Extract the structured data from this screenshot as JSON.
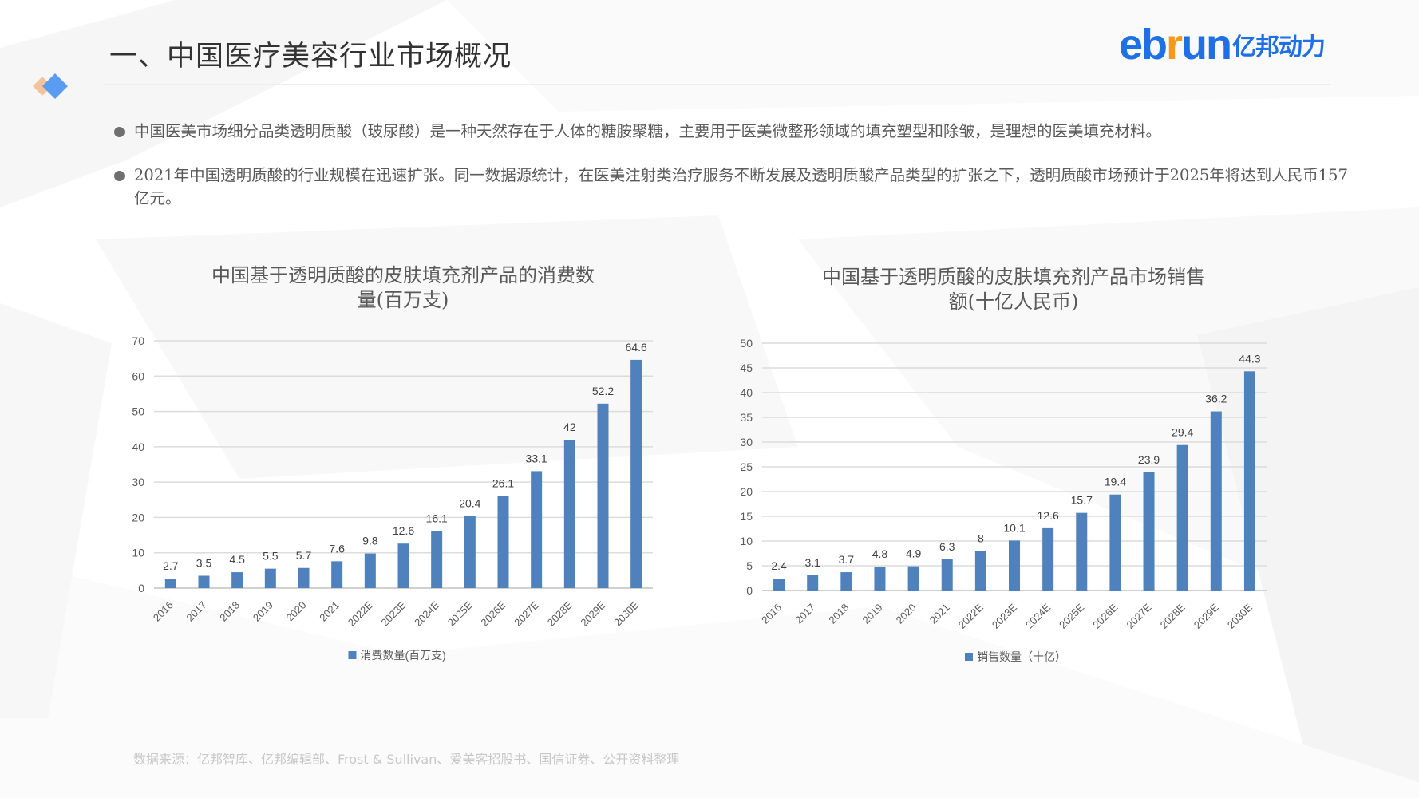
{
  "header": {
    "title": "一、中国医疗美容行业市场概况",
    "logo_latin_1": "eb",
    "logo_latin_r": "r",
    "logo_latin_2": "un",
    "logo_cn": "亿邦动力",
    "brand_color": "#1f6fe5",
    "accent_color": "#f39a1d"
  },
  "bullets": [
    {
      "text": "中国医美市场细分品类透明质酸（玻尿酸）是一种天然存在于人体的糖胺聚糖，主要用于医美微整形领域的填充塑型和除皱，是理想的医美填充材料。"
    },
    {
      "text": "2021年中国透明质酸的行业规模在迅速扩张。同一数据源统计，在医美注射类治疗服务不断发展及透明质酸产品类型的扩张之下，透明质酸市场预计于2025年将达到人民币157亿元。"
    }
  ],
  "chart_data": [
    {
      "type": "bar",
      "title": "中国基于透明质酸的皮肤填充剂产品的消费数量(百万支)",
      "title_line1": "中国基于透明质酸的皮肤填充剂产品的消费数",
      "title_line2": "量(百万支)",
      "categories": [
        "2016",
        "2017",
        "2018",
        "2019",
        "2020",
        "2021",
        "2022E",
        "2023E",
        "2024E",
        "2025E",
        "2026E",
        "2027E",
        "2028E",
        "2029E",
        "2030E"
      ],
      "series": [
        {
          "name": "消费数量(百万支)",
          "values": [
            2.7,
            3.5,
            4.5,
            5.5,
            5.7,
            7.6,
            9.8,
            12.6,
            16.1,
            20.4,
            26.1,
            33.1,
            42,
            52.2,
            64.6
          ]
        }
      ],
      "ylim": [
        0,
        70
      ],
      "yticks": [
        0,
        10,
        20,
        30,
        40,
        50,
        60,
        70
      ],
      "xlabel": "",
      "ylabel": "",
      "grid": true,
      "legend_position": "bottom",
      "bar_color": "#4f81bd"
    },
    {
      "type": "bar",
      "title": "中国基于透明质酸的皮肤填充剂产品市场销售额(十亿人民币)",
      "title_line1": "中国基于透明质酸的皮肤填充剂产品市场销售",
      "title_line2": "额(十亿人民币)",
      "categories": [
        "2016",
        "2017",
        "2018",
        "2019",
        "2020",
        "2021",
        "2022E",
        "2023E",
        "2024E",
        "2025E",
        "2026E",
        "2027E",
        "2028E",
        "2029E",
        "2030E"
      ],
      "series": [
        {
          "name": "销售数量（十亿）",
          "values": [
            2.4,
            3.1,
            3.7,
            4.8,
            4.9,
            6.3,
            8,
            10.1,
            12.6,
            15.7,
            19.4,
            23.9,
            29.4,
            36.2,
            44.3
          ]
        }
      ],
      "ylim": [
        0,
        50
      ],
      "yticks": [
        0,
        5,
        10,
        15,
        20,
        25,
        30,
        35,
        40,
        45,
        50
      ],
      "xlabel": "",
      "ylabel": "",
      "grid": true,
      "legend_position": "bottom",
      "bar_color": "#4f81bd"
    }
  ],
  "footer": {
    "source": "数据来源：亿邦智库、亿邦编辑部、Frost & Sullivan、爱美客招股书、国信证券、公开资料整理"
  }
}
